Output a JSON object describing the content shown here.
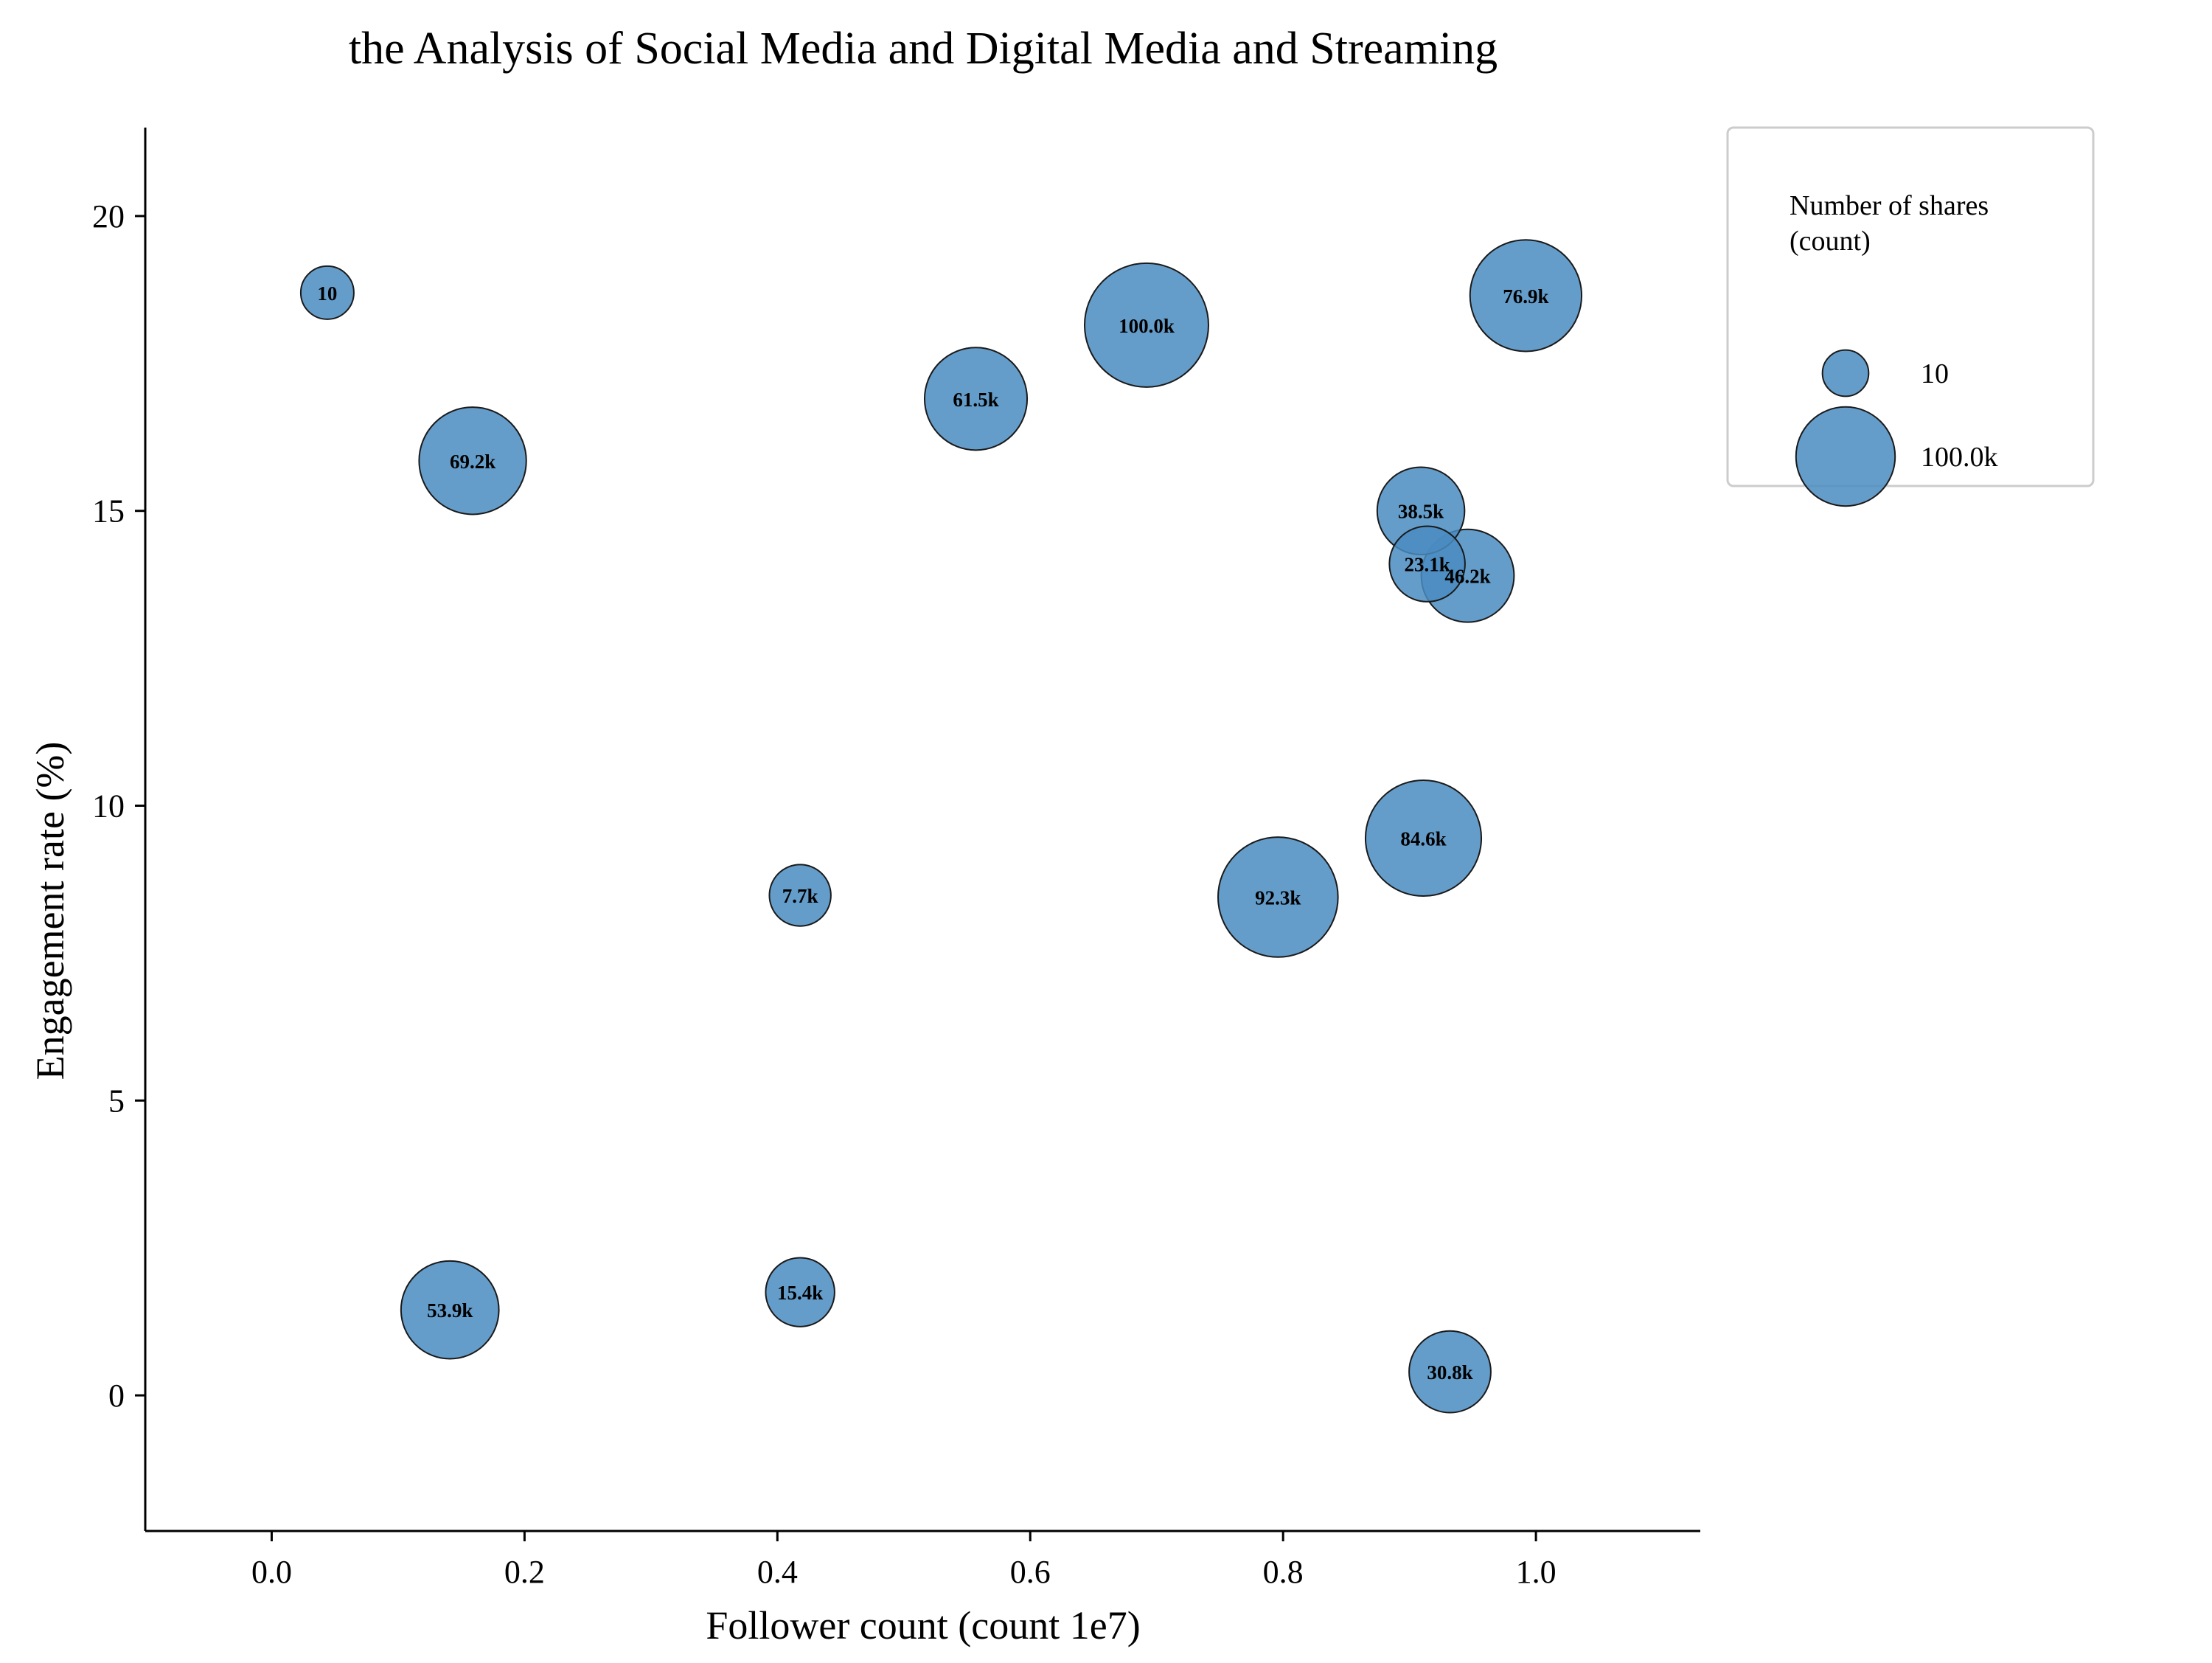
{
  "chart_data": {
    "type": "scatter",
    "title": "the Analysis of Social Media and Digital Media and Streaming",
    "xlabel": "Follower count (count 1e7)",
    "ylabel": "Engagement rate (%)",
    "xlim": [
      -0.1,
      1.13
    ],
    "ylim": [
      -2.3,
      21.5
    ],
    "x_ticks": [
      0.0,
      0.2,
      0.4,
      0.6,
      0.8,
      1.0
    ],
    "x_tick_labels": [
      "0.0",
      "0.2",
      "0.4",
      "0.6",
      "0.8",
      "1.0"
    ],
    "y_ticks": [
      0,
      5,
      10,
      15,
      20
    ],
    "y_tick_labels": [
      "0",
      "5",
      "10",
      "15",
      "20"
    ],
    "grid": false,
    "marker_color": "#4a8cc1",
    "marker_edge_color": "#1a1a1a",
    "size_range": [
      10,
      100000
    ],
    "points": [
      {
        "x": 0.044,
        "y": 18.7,
        "size": 10,
        "label": "10"
      },
      {
        "x": 0.159,
        "y": 15.85,
        "size": 69200,
        "label": "69.2k"
      },
      {
        "x": 0.557,
        "y": 16.9,
        "size": 61500,
        "label": "61.5k"
      },
      {
        "x": 0.692,
        "y": 18.15,
        "size": 100000,
        "label": "100.0k"
      },
      {
        "x": 0.992,
        "y": 18.65,
        "size": 76900,
        "label": "76.9k"
      },
      {
        "x": 0.909,
        "y": 15.0,
        "size": 38500,
        "label": "38.5k"
      },
      {
        "x": 0.914,
        "y": 14.1,
        "size": 23100,
        "label": "23.1k"
      },
      {
        "x": 0.946,
        "y": 13.9,
        "size": 46200,
        "label": "46.2k"
      },
      {
        "x": 0.911,
        "y": 9.45,
        "size": 84600,
        "label": "84.6k"
      },
      {
        "x": 0.796,
        "y": 8.45,
        "size": 92300,
        "label": "92.3k"
      },
      {
        "x": 0.418,
        "y": 8.48,
        "size": 7700,
        "label": "7.7k"
      },
      {
        "x": 0.141,
        "y": 1.45,
        "size": 53900,
        "label": "53.9k"
      },
      {
        "x": 0.418,
        "y": 1.75,
        "size": 15400,
        "label": "15.4k"
      },
      {
        "x": 0.932,
        "y": 0.4,
        "size": 30800,
        "label": "30.8k"
      }
    ],
    "legend": {
      "title": "Number of shares\n(count)",
      "position": "upper-right-outside",
      "entries": [
        {
          "size": 10,
          "label": "10"
        },
        {
          "size": 100000,
          "label": "100.0k"
        }
      ]
    }
  }
}
